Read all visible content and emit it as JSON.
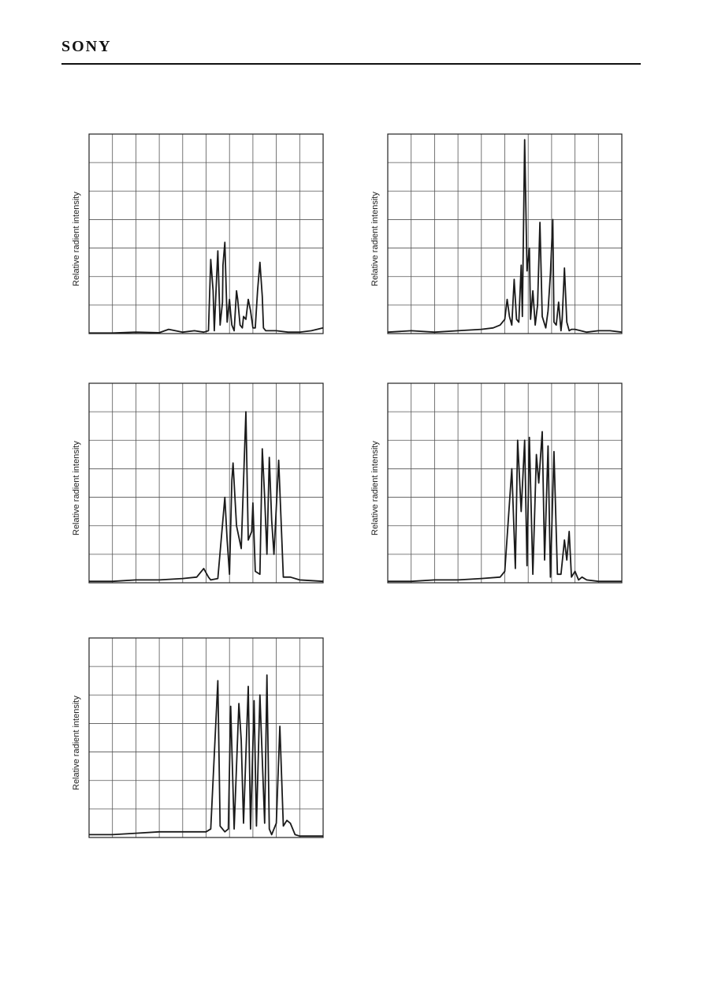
{
  "header": {
    "logo": "SONY"
  },
  "chart_data": [
    {
      "type": "line",
      "ylabel": "Relative radient intensity",
      "xlim": [
        0,
        10
      ],
      "ylim": [
        0,
        7
      ],
      "grid": true,
      "series": [
        {
          "x": [
            0,
            1,
            2,
            3,
            3.4,
            4,
            4.5,
            4.9,
            5.1,
            5.2,
            5.3,
            5.35,
            5.45,
            5.5,
            5.6,
            5.7,
            5.72,
            5.8,
            5.9,
            6.0,
            6.05,
            6.1,
            6.2,
            6.3,
            6.35,
            6.45,
            6.55,
            6.6,
            6.7,
            6.8,
            6.9,
            7.0,
            7.1,
            7.2,
            7.3,
            7.4,
            7.45,
            7.55,
            7.7,
            8,
            8.5,
            9,
            9.5,
            10
          ],
          "y": [
            0.02,
            0.02,
            0.05,
            0.03,
            0.15,
            0.05,
            0.1,
            0.05,
            0.1,
            2.6,
            1.5,
            0.1,
            2.0,
            2.9,
            0.3,
            1.1,
            2.4,
            3.2,
            0.4,
            1.2,
            0.7,
            0.3,
            0.1,
            1.5,
            1.2,
            0.3,
            0.2,
            0.6,
            0.5,
            1.2,
            0.8,
            0.2,
            0.2,
            1.5,
            2.5,
            1.3,
            0.2,
            0.1,
            0.1,
            0.1,
            0.05,
            0.05,
            0.1,
            0.2
          ]
        }
      ]
    },
    {
      "type": "line",
      "ylabel": "Relative radient intensity",
      "xlim": [
        0,
        10
      ],
      "ylim": [
        0,
        7
      ],
      "grid": true,
      "series": [
        {
          "x": [
            0,
            1,
            2,
            3,
            4,
            4.5,
            4.8,
            5.0,
            5.1,
            5.2,
            5.3,
            5.4,
            5.5,
            5.6,
            5.7,
            5.75,
            5.85,
            5.95,
            6.05,
            6.1,
            6.2,
            6.3,
            6.4,
            6.5,
            6.6,
            6.75,
            6.85,
            6.95,
            7.05,
            7.1,
            7.2,
            7.3,
            7.4,
            7.45,
            7.55,
            7.65,
            7.75,
            7.85,
            8,
            8.5,
            9,
            9.5,
            10
          ],
          "y": [
            0.05,
            0.1,
            0.05,
            0.1,
            0.15,
            0.2,
            0.3,
            0.5,
            1.2,
            0.6,
            0.3,
            1.9,
            0.5,
            0.4,
            2.4,
            0.6,
            6.8,
            2.2,
            3.0,
            0.5,
            1.5,
            0.3,
            1.0,
            3.9,
            0.6,
            0.2,
            0.8,
            2.1,
            4.0,
            0.4,
            0.3,
            1.1,
            0.1,
            0.5,
            2.3,
            0.4,
            0.1,
            0.15,
            0.15,
            0.05,
            0.1,
            0.1,
            0.05
          ]
        }
      ]
    },
    {
      "type": "line",
      "ylabel": "Relative radient intensity",
      "xlim": [
        0,
        10
      ],
      "ylim": [
        0,
        7
      ],
      "grid": true,
      "series": [
        {
          "x": [
            0,
            1,
            2,
            3,
            4,
            4.6,
            4.9,
            5.1,
            5.2,
            5.5,
            5.8,
            5.9,
            6.0,
            6.1,
            6.15,
            6.3,
            6.5,
            6.7,
            6.8,
            6.95,
            7.0,
            7.1,
            7.3,
            7.4,
            7.5,
            7.6,
            7.7,
            7.8,
            7.9,
            8.1,
            8.3,
            8.6,
            9,
            10
          ],
          "y": [
            0.05,
            0.05,
            0.1,
            0.1,
            0.15,
            0.2,
            0.5,
            0.2,
            0.1,
            0.15,
            3.0,
            1.5,
            0.3,
            3.6,
            4.2,
            2.0,
            1.2,
            6.0,
            1.5,
            1.8,
            2.8,
            0.4,
            0.3,
            4.7,
            3.0,
            1.0,
            4.4,
            2.2,
            1.0,
            4.3,
            0.2,
            0.2,
            0.1,
            0.05
          ]
        }
      ]
    },
    {
      "type": "line",
      "ylabel": "Relative radient intensity",
      "xlim": [
        0,
        10
      ],
      "ylim": [
        0,
        7
      ],
      "grid": true,
      "series": [
        {
          "x": [
            0,
            1,
            2,
            3,
            4,
            4.8,
            5.0,
            5.3,
            5.45,
            5.55,
            5.7,
            5.85,
            5.95,
            6.05,
            6.2,
            6.35,
            6.45,
            6.6,
            6.7,
            6.85,
            6.95,
            7.1,
            7.25,
            7.4,
            7.55,
            7.65,
            7.75,
            7.85,
            8.0,
            8.15,
            8.3,
            8.5,
            9,
            10
          ],
          "y": [
            0.05,
            0.05,
            0.1,
            0.1,
            0.15,
            0.2,
            0.4,
            4.0,
            0.5,
            5.0,
            2.5,
            5.0,
            0.6,
            5.1,
            0.3,
            4.5,
            3.5,
            5.3,
            0.8,
            4.8,
            0.2,
            4.6,
            0.3,
            0.3,
            1.5,
            0.8,
            1.8,
            0.2,
            0.4,
            0.1,
            0.2,
            0.1,
            0.05,
            0.05
          ]
        }
      ]
    },
    {
      "type": "line",
      "ylabel": "Relative radient intensity",
      "xlim": [
        0,
        10
      ],
      "ylim": [
        0,
        7
      ],
      "grid": true,
      "series": [
        {
          "x": [
            0,
            1,
            2,
            3,
            4,
            5,
            5.2,
            5.5,
            5.6,
            5.8,
            5.95,
            6.05,
            6.2,
            6.4,
            6.5,
            6.6,
            6.8,
            6.9,
            7.05,
            7.15,
            7.3,
            7.5,
            7.6,
            7.7,
            7.8,
            8.0,
            8.15,
            8.3,
            8.45,
            8.6,
            8.8,
            9,
            10
          ],
          "y": [
            0.1,
            0.1,
            0.15,
            0.2,
            0.2,
            0.2,
            0.3,
            5.5,
            0.4,
            0.2,
            0.3,
            4.6,
            0.3,
            4.7,
            3.4,
            0.5,
            5.3,
            0.3,
            4.8,
            0.4,
            5.0,
            0.5,
            5.7,
            0.3,
            0.1,
            0.5,
            3.9,
            0.4,
            0.6,
            0.5,
            0.1,
            0.05,
            0.05
          ]
        }
      ]
    }
  ]
}
